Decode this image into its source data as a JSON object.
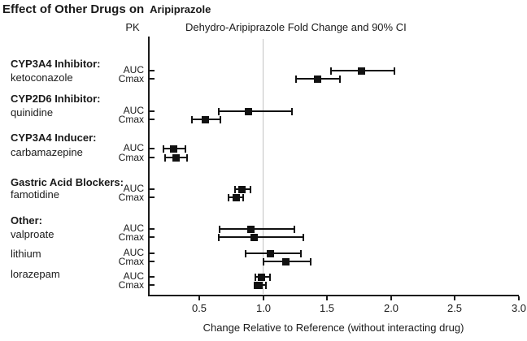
{
  "chart_data": {
    "type": "forest",
    "title": "Effect of Other Drugs on",
    "title_drug": "Aripiprazole",
    "pk_column_header": "PK",
    "value_column_header": "Dehydro-Aripiprazole Fold Change and 90% CI",
    "xlabel": "Change Relative to Reference (without interacting drug)",
    "x_tick_labels": [
      "0.5",
      "1.0",
      "1.5",
      "2.0",
      "2.5",
      "3.0"
    ],
    "x_tick_values": [
      0.5,
      1.0,
      1.5,
      2.0,
      2.5,
      3.0
    ],
    "xlim": [
      0.1,
      3.0
    ],
    "reference_value": 1.0,
    "pk_row_labels": [
      "AUC",
      "Cmax"
    ],
    "grid": "reference-line-only",
    "groups": [
      {
        "label": "CYP3A4 Inhibitor:",
        "drugs": [
          {
            "name": "ketoconazole",
            "auc": {
              "value": 1.77,
              "ci": [
                1.53,
                2.03
              ]
            },
            "cmax": {
              "value": 1.43,
              "ci": [
                1.26,
                1.61
              ]
            }
          }
        ]
      },
      {
        "label": "CYP2D6 Inhibitor:",
        "drugs": [
          {
            "name": "quinidine",
            "auc": {
              "value": 0.89,
              "ci": [
                0.65,
                1.23
              ]
            },
            "cmax": {
              "value": 0.55,
              "ci": [
                0.44,
                0.67
              ]
            }
          }
        ]
      },
      {
        "label": "CYP3A4 Inducer:",
        "drugs": [
          {
            "name": "carbamazepine",
            "auc": {
              "value": 0.3,
              "ci": [
                0.22,
                0.4
              ]
            },
            "cmax": {
              "value": 0.32,
              "ci": [
                0.23,
                0.41
              ]
            }
          }
        ]
      },
      {
        "label": "Gastric Acid Blockers:",
        "drugs": [
          {
            "name": "famotidine",
            "auc": {
              "value": 0.84,
              "ci": [
                0.78,
                0.91
              ]
            },
            "cmax": {
              "value": 0.79,
              "ci": [
                0.73,
                0.85
              ]
            }
          }
        ]
      },
      {
        "label": "Other:",
        "drugs": [
          {
            "name": "valproate",
            "auc": {
              "value": 0.91,
              "ci": [
                0.66,
                1.25
              ]
            },
            "cmax": {
              "value": 0.93,
              "ci": [
                0.65,
                1.32
              ]
            }
          },
          {
            "name": "lithium",
            "auc": {
              "value": 1.06,
              "ci": [
                0.86,
                1.3
              ]
            },
            "cmax": {
              "value": 1.18,
              "ci": [
                1.0,
                1.38
              ]
            }
          },
          {
            "name": "lorazepam",
            "auc": {
              "value": 0.99,
              "ci": [
                0.94,
                1.06
              ]
            },
            "cmax": {
              "value": 0.97,
              "ci": [
                0.93,
                1.03
              ]
            }
          }
        ]
      }
    ]
  }
}
